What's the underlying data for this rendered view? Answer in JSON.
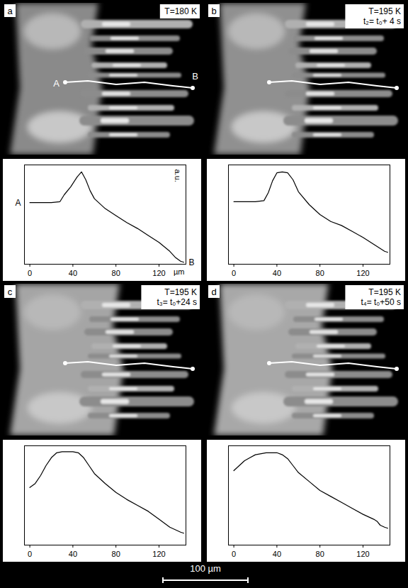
{
  "chart_data": [
    {
      "type": "line",
      "panel_label": "a",
      "title": "T=180 K",
      "x_label": "µm",
      "y_label": "a.u.",
      "start_label": "A",
      "end_label": "B",
      "x": [
        0,
        10,
        20,
        28,
        32,
        38,
        44,
        48,
        52,
        56,
        60,
        70,
        80,
        90,
        100,
        110,
        120,
        130,
        135,
        140,
        143
      ],
      "values": [
        0.62,
        0.62,
        0.62,
        0.63,
        0.7,
        0.78,
        0.88,
        0.93,
        0.85,
        0.74,
        0.66,
        0.56,
        0.49,
        0.42,
        0.36,
        0.29,
        0.22,
        0.13,
        0.07,
        0.03,
        0.02
      ],
      "xlim": [
        -5,
        145
      ],
      "ylim": [
        0,
        1
      ],
      "xticks": [
        0,
        40,
        80,
        120
      ],
      "tick_labels": "x",
      "color": "#000000"
    },
    {
      "type": "line",
      "panel_label": "b",
      "title": "T=195 K",
      "subtitle": "t₂= t₀+ 4 s",
      "x": [
        0,
        10,
        20,
        28,
        32,
        36,
        40,
        45,
        50,
        55,
        60,
        70,
        80,
        90,
        100,
        110,
        120,
        130,
        140,
        143
      ],
      "values": [
        0.63,
        0.63,
        0.63,
        0.64,
        0.72,
        0.84,
        0.92,
        0.93,
        0.92,
        0.85,
        0.73,
        0.6,
        0.5,
        0.43,
        0.39,
        0.33,
        0.27,
        0.2,
        0.13,
        0.12
      ],
      "xlim": [
        -5,
        145
      ],
      "ylim": [
        0,
        1
      ],
      "xticks": [
        0,
        40,
        80,
        120
      ],
      "tick_labels": "x",
      "color": "#000000"
    },
    {
      "type": "line",
      "panel_label": "c",
      "title": "T=195 K",
      "subtitle": "t₃= t₀+24 s",
      "x": [
        0,
        5,
        10,
        15,
        20,
        25,
        30,
        40,
        45,
        50,
        55,
        60,
        70,
        80,
        90,
        100,
        110,
        120,
        130,
        140,
        143
      ],
      "values": [
        0.58,
        0.62,
        0.7,
        0.8,
        0.88,
        0.93,
        0.94,
        0.94,
        0.93,
        0.88,
        0.8,
        0.72,
        0.62,
        0.53,
        0.46,
        0.4,
        0.34,
        0.26,
        0.18,
        0.13,
        0.12
      ],
      "xlim": [
        -5,
        145
      ],
      "ylim": [
        0,
        1
      ],
      "xticks": [
        0,
        40,
        80,
        120
      ],
      "tick_labels": "x",
      "color": "#000000"
    },
    {
      "type": "line",
      "panel_label": "d",
      "title": "T=195 K",
      "subtitle": "t₄= t₀+50 s",
      "x": [
        0,
        5,
        10,
        15,
        20,
        30,
        40,
        45,
        50,
        55,
        60,
        70,
        80,
        90,
        100,
        110,
        120,
        130,
        133,
        136,
        140,
        143
      ],
      "values": [
        0.75,
        0.8,
        0.85,
        0.88,
        0.91,
        0.93,
        0.93,
        0.91,
        0.87,
        0.8,
        0.73,
        0.64,
        0.55,
        0.49,
        0.43,
        0.37,
        0.31,
        0.26,
        0.24,
        0.2,
        0.18,
        0.17
      ],
      "xlim": [
        -5,
        145
      ],
      "ylim": [
        0,
        1
      ],
      "xticks": [
        0,
        40,
        80,
        120
      ],
      "tick_labels": "x",
      "color": "#000000"
    }
  ],
  "scale_bar_label": "100 µm"
}
